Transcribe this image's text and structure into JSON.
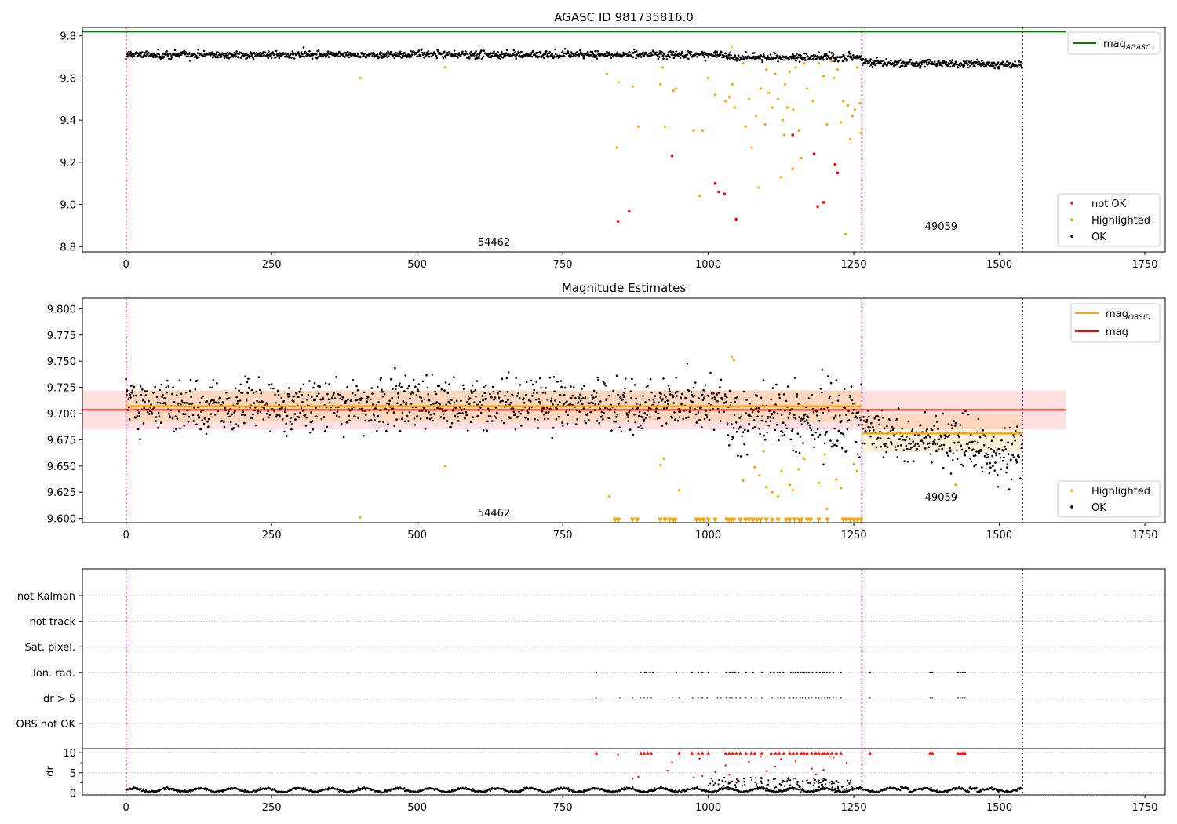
{
  "chart_data": [
    {
      "type": "scatter",
      "title": "AGASC ID 981735816.0",
      "xlim": [
        -75,
        1785
      ],
      "ylim": [
        8.775,
        9.84
      ],
      "x_ticks": [
        "0",
        "250",
        "500",
        "750",
        "1000",
        "1250",
        "1500",
        "1750"
      ],
      "y_ticks": [
        "8.8",
        "9.0",
        "9.2",
        "9.4",
        "9.6",
        "9.8"
      ],
      "grid": false,
      "reference_line": {
        "label": "mag",
        "label_sub": "AGASC",
        "y": 9.82,
        "x_range": [
          -75,
          1615
        ],
        "color": "#008000"
      },
      "obsid_boundaries": [
        0,
        1264,
        1540
      ],
      "obsid_labels": [
        {
          "text": "54462",
          "x": 632,
          "y": 8.82
        },
        {
          "text": "49059",
          "x": 1400,
          "y": 8.895
        }
      ],
      "series": [
        {
          "name": "not OK",
          "color": "#ff0000",
          "note": "sparse scatter between x=840 and 1230, y 8.92-9.33"
        },
        {
          "name": "Highlighted",
          "color": "#ffa500",
          "note": "sparse scatter, mostly x=820-1260, y 8.86-9.75"
        },
        {
          "name": "OK",
          "color": "#000000",
          "note": "dense band around 9.71 for x=0-1264, around 9.67 for x=1264-1540"
        }
      ],
      "legend_lines": {
        "placement": "upper right"
      },
      "legend_points": {
        "placement": "lower right"
      }
    },
    {
      "type": "scatter",
      "title": "Magnitude Estimates",
      "xlim": [
        -75,
        1785
      ],
      "ylim": [
        9.596,
        9.81
      ],
      "x_ticks": [
        "0",
        "250",
        "500",
        "750",
        "1000",
        "1250",
        "1500",
        "1750"
      ],
      "y_ticks": [
        "9.600",
        "9.625",
        "9.650",
        "9.675",
        "9.700",
        "9.725",
        "9.750",
        "9.775",
        "9.800"
      ],
      "grid": false,
      "mag_line": {
        "label": "mag",
        "y": 9.7035,
        "band": [
          9.685,
          9.722
        ],
        "x_range": [
          -75,
          1615
        ],
        "color": "#ff0000"
      },
      "mag_obsid_segments": [
        {
          "x_range": [
            0,
            1264
          ],
          "y": 9.707,
          "band": [
            9.692,
            9.722
          ]
        },
        {
          "x_range": [
            1264,
            1540
          ],
          "y": 9.681,
          "band": [
            9.663,
            9.699
          ]
        }
      ],
      "mag_obsid_legend": {
        "label": "mag",
        "label_sub": "OBSID",
        "color": "#ffa500"
      },
      "obsid_boundaries": [
        0,
        1264,
        1540
      ],
      "obsid_labels": [
        {
          "text": "54462",
          "x": 632,
          "y": 9.605
        },
        {
          "text": "49059",
          "x": 1400,
          "y": 9.62
        }
      ],
      "series": [
        {
          "name": "Highlighted",
          "color": "#ffa500",
          "note": "scatter plus down-triangles at 9.598 marking values below range"
        },
        {
          "name": "OK",
          "color": "#000000",
          "note": "dense scatter around 9.707 then 9.675"
        }
      ],
      "legend_lines": {
        "placement": "upper right"
      },
      "legend_points": {
        "placement": "lower right"
      }
    },
    {
      "type": "scatter",
      "title": "",
      "xlim": [
        -75,
        1785
      ],
      "categories": [
        "not Kalman",
        "not track",
        "Sat. pixel.",
        "Ion. rad.",
        "dr > 5",
        "OBS not OK"
      ],
      "grid": true,
      "obsid_boundaries": [
        0,
        1264,
        1540
      ],
      "flag_rows": [
        {
          "category": "not Kalman",
          "x": []
        },
        {
          "category": "not track",
          "x": []
        },
        {
          "category": "Sat. pixel.",
          "x": []
        },
        {
          "category": "Ion. rad.",
          "x": [
            808,
            884,
            891,
            894,
            900,
            905,
            945,
            972,
            983,
            988,
            990,
            1000,
            1031,
            1037,
            1042,
            1046,
            1052,
            1065,
            1077,
            1092,
            1107,
            1113,
            1119,
            1123,
            1129,
            1142,
            1146,
            1150,
            1154,
            1159,
            1163,
            1165,
            1169,
            1173,
            1179,
            1186,
            1192,
            1196,
            1199,
            1204,
            1209,
            1215,
            1228,
            1278,
            1381,
            1385,
            1429,
            1433,
            1437,
            1441
          ]
        },
        {
          "category": "dr > 5",
          "x": [
            808,
            848,
            870,
            884,
            890,
            896,
            902,
            938,
            950,
            973,
            983,
            990,
            998,
            1016,
            1022,
            1031,
            1037,
            1041,
            1048,
            1055,
            1065,
            1074,
            1082,
            1092,
            1110,
            1120,
            1124,
            1130,
            1140,
            1147,
            1152,
            1158,
            1162,
            1167,
            1173,
            1178,
            1185,
            1190,
            1195,
            1200,
            1205,
            1209,
            1215,
            1220,
            1228,
            1278,
            1381,
            1385,
            1429,
            1433,
            1437,
            1441
          ]
        },
        {
          "category": "OBS not OK",
          "x": []
        }
      ]
    },
    {
      "type": "scatter",
      "title": "",
      "ylabel": "dr",
      "xlim": [
        -75,
        1785
      ],
      "ylim": [
        -0.5,
        11
      ],
      "x_ticks": [
        "0",
        "250",
        "500",
        "750",
        "1000",
        "1250",
        "1500",
        "1750"
      ],
      "y_ticks": [
        "0",
        "5",
        "10"
      ],
      "grid": true,
      "obsid_boundaries": [
        0,
        1264,
        1540
      ],
      "series": [
        {
          "name": "dr",
          "color": "#000000",
          "note": "wavy low band 0-1.5 across all x, scattered 1-4 for x=1000-1250"
        },
        {
          "name": "dr > 5",
          "color": "#ff0000",
          "note": "points 4-10, triangles at 10 where clipped"
        }
      ]
    }
  ]
}
